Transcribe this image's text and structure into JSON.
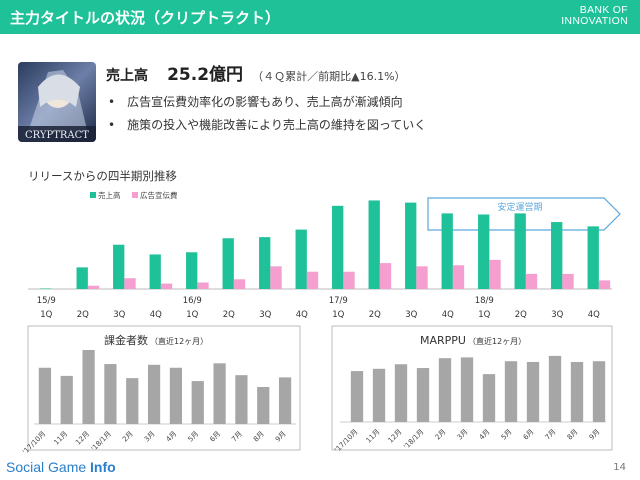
{
  "header": {
    "title": "主力タイトルの状況（クリプトラクト）"
  },
  "brand": {
    "line1": "BANK OF",
    "line2": "INNOVATION"
  },
  "app": {
    "logo_text": "CRYPTRACT"
  },
  "summary": {
    "kpi_label": "売上高",
    "kpi_value": "25.2億円",
    "kpi_note": "（４Ｑ累計／前期比▲16.1%）",
    "bullets": [
      "広告宣伝費効率化の影響もあり、売上高が漸減傾向",
      "施策の投入や機能改善により売上高の維持を図っていく"
    ]
  },
  "section_label": "リリースからの四半期別推移",
  "annotation": "安定運営期",
  "footer": {
    "brand_a": "Social Game",
    "brand_b": "Info"
  },
  "page_number": "14",
  "colors": {
    "header": "#1ec198",
    "sales": "#1ec198",
    "ad": "#f59fd0",
    "gray": "#a6a6a6",
    "arrow": "#5aa7de"
  },
  "chart_data": [
    {
      "type": "bar",
      "legend": [
        "売上高",
        "広告宣伝費"
      ],
      "legend_position": "top-left",
      "x_top": [
        "15/9",
        "",
        "",
        "",
        "16/9",
        "",
        "",
        "",
        "17/9",
        "",
        "",
        "",
        "18/9",
        "",
        "",
        ""
      ],
      "categories": [
        "1Q",
        "2Q",
        "3Q",
        "4Q",
        "1Q",
        "2Q",
        "3Q",
        "4Q",
        "1Q",
        "2Q",
        "3Q",
        "4Q",
        "1Q",
        "2Q",
        "3Q",
        "4Q"
      ],
      "series": [
        {
          "name": "売上高",
          "values": [
            0.5,
            20,
            41,
            32,
            34,
            47,
            48,
            55,
            77,
            82,
            80,
            70,
            69,
            70,
            62,
            58
          ]
        },
        {
          "name": "広告宣伝費",
          "values": [
            0,
            3,
            10,
            5,
            6,
            9,
            21,
            16,
            16,
            24,
            21,
            22,
            27,
            14,
            14,
            8
          ]
        }
      ],
      "ylim": [
        0,
        100
      ],
      "grid": false
    },
    {
      "type": "bar",
      "title": "課金者数",
      "subtitle": "（直近12ヶ月）",
      "categories": [
        "'17/10月",
        "11月",
        "12月",
        "'18/1月",
        "2月",
        "3月",
        "4月",
        "5月",
        "6月",
        "7月",
        "8月",
        "9月"
      ],
      "values": [
        76,
        65,
        100,
        81,
        62,
        80,
        76,
        58,
        82,
        66,
        50,
        63
      ],
      "ylim": [
        0,
        100
      ],
      "grid": false
    },
    {
      "type": "bar",
      "title": "MARPPU",
      "subtitle": "（直近12ヶ月）",
      "categories": [
        "'17/10月",
        "11月",
        "12月",
        "'18/1月",
        "2月",
        "3月",
        "4月",
        "5月",
        "6月",
        "7月",
        "8月",
        "9月"
      ],
      "values": [
        67,
        70,
        76,
        71,
        84,
        85,
        63,
        80,
        79,
        87,
        79,
        80
      ],
      "ylim": [
        0,
        100
      ],
      "grid": false
    }
  ]
}
